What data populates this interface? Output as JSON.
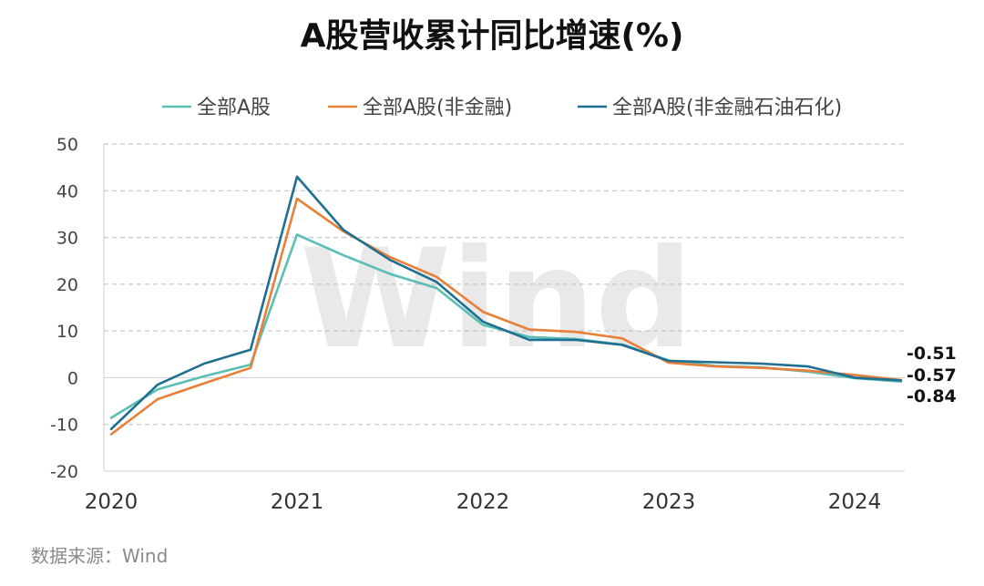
{
  "title": "A股营收累计同比增速(%)",
  "source": "数据来源：Wind",
  "watermark": "Wind",
  "chart_data": {
    "type": "line",
    "title": "A股营收累计同比增速(%)",
    "xlabel": "",
    "ylabel": "",
    "ylim": [
      -20,
      50
    ],
    "yticks": [
      50,
      40,
      30,
      20,
      10,
      0,
      -10,
      -20
    ],
    "xticks": [
      "2020",
      "2021",
      "2022",
      "2023",
      "2024"
    ],
    "x": [
      "2020Q1",
      "2020Q2",
      "2020Q3",
      "2020Q4",
      "2021Q1",
      "2021Q2",
      "2021Q3",
      "2021Q4",
      "2022Q1",
      "2022Q2",
      "2022Q3",
      "2022Q4",
      "2023Q1",
      "2023Q2",
      "2023Q3",
      "2023Q4",
      "2024Q1",
      "2024Q2"
    ],
    "grid": "horizontal dashed",
    "legend_position": "top",
    "series": [
      {
        "name": "全部A股",
        "color": "#5bbfb5",
        "values": [
          -8.6,
          -2.5,
          0.3,
          2.8,
          30.6,
          26.2,
          22.2,
          19.2,
          11.3,
          8.7,
          8.3,
          7.1,
          3.7,
          2.5,
          2.2,
          1.3,
          -0.1,
          -0.84
        ]
      },
      {
        "name": "全部A股(非金融)",
        "color": "#e8803a",
        "values": [
          -12.1,
          -4.6,
          -1.2,
          2.1,
          38.3,
          31.3,
          25.8,
          21.6,
          14.1,
          10.3,
          9.8,
          8.4,
          3.2,
          2.4,
          2.1,
          1.5,
          0.6,
          -0.51
        ]
      },
      {
        "name": "全部A股(非金融石油石化)",
        "color": "#1f6f93",
        "values": [
          -11.0,
          -1.5,
          3.0,
          6.0,
          43.0,
          31.6,
          25.2,
          20.5,
          12.0,
          8.1,
          8.1,
          7.0,
          3.6,
          3.3,
          3.0,
          2.4,
          0.0,
          -0.57
        ]
      }
    ],
    "end_labels": [
      "-0.51",
      "-0.57",
      "-0.84"
    ]
  }
}
